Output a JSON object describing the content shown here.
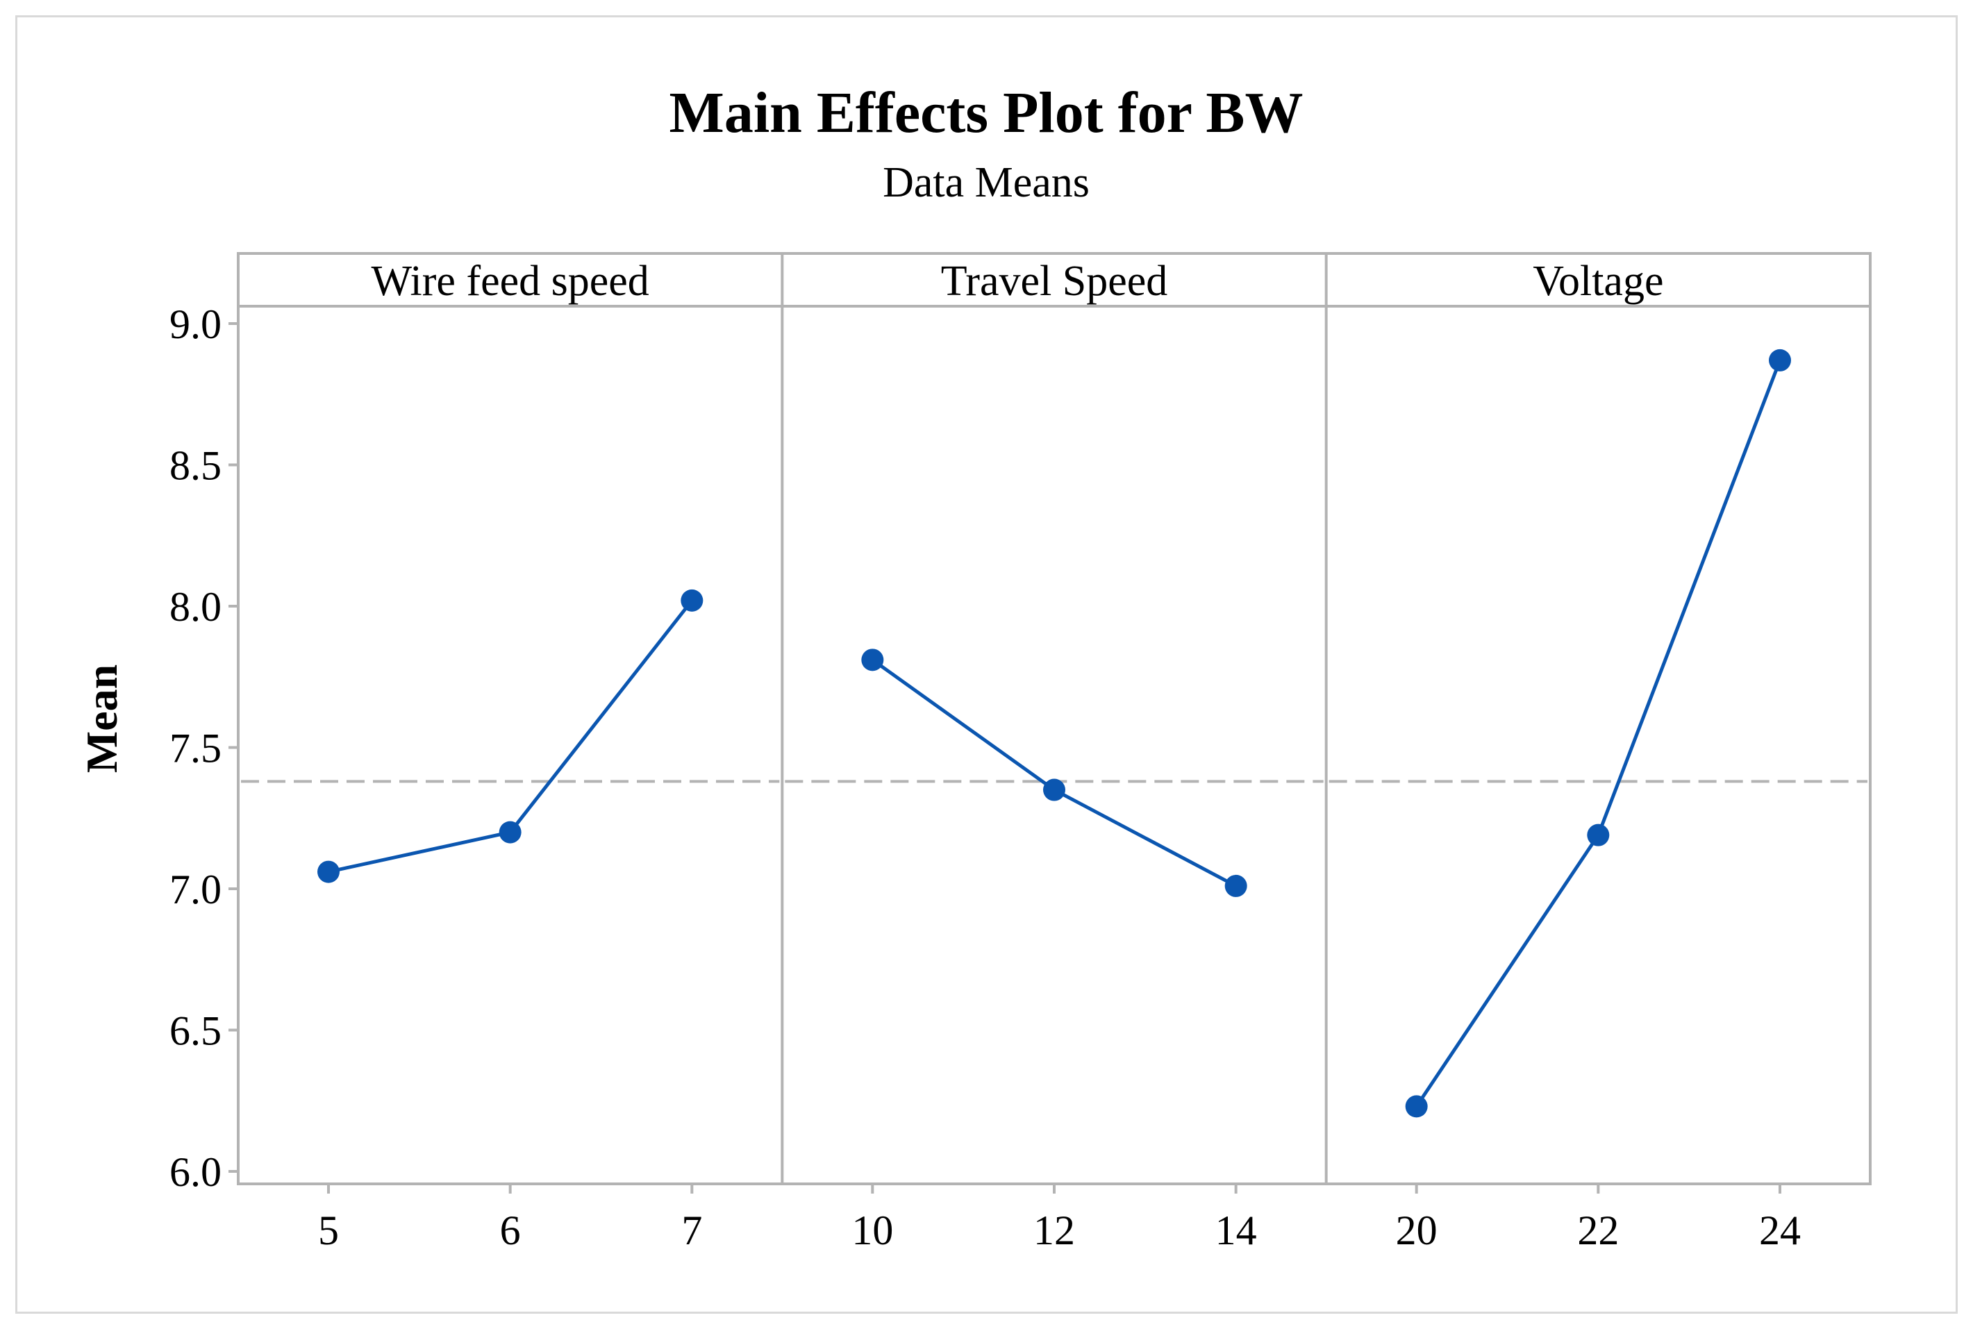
{
  "chart_data": {
    "type": "line",
    "title": "Main Effects Plot for BW",
    "subtitle": "Data Means",
    "ylabel": "Mean",
    "ylim": [
      6.0,
      9.0
    ],
    "yticks": [
      "6.0",
      "6.5",
      "7.0",
      "7.5",
      "8.0",
      "8.5",
      "9.0"
    ],
    "ytick_values": [
      6.0,
      6.5,
      7.0,
      7.5,
      8.0,
      8.5,
      9.0
    ],
    "reference_mean": 7.38,
    "line_color": "#0b56b0",
    "panels": [
      {
        "name": "Wire feed speed",
        "x": [
          "5",
          "6",
          "7"
        ],
        "values": [
          7.06,
          7.2,
          8.02
        ]
      },
      {
        "name": "Travel Speed",
        "x": [
          "10",
          "12",
          "14"
        ],
        "values": [
          7.81,
          7.35,
          7.01
        ]
      },
      {
        "name": "Voltage",
        "x": [
          "20",
          "22",
          "24"
        ],
        "values": [
          6.23,
          7.19,
          8.87
        ]
      }
    ]
  }
}
